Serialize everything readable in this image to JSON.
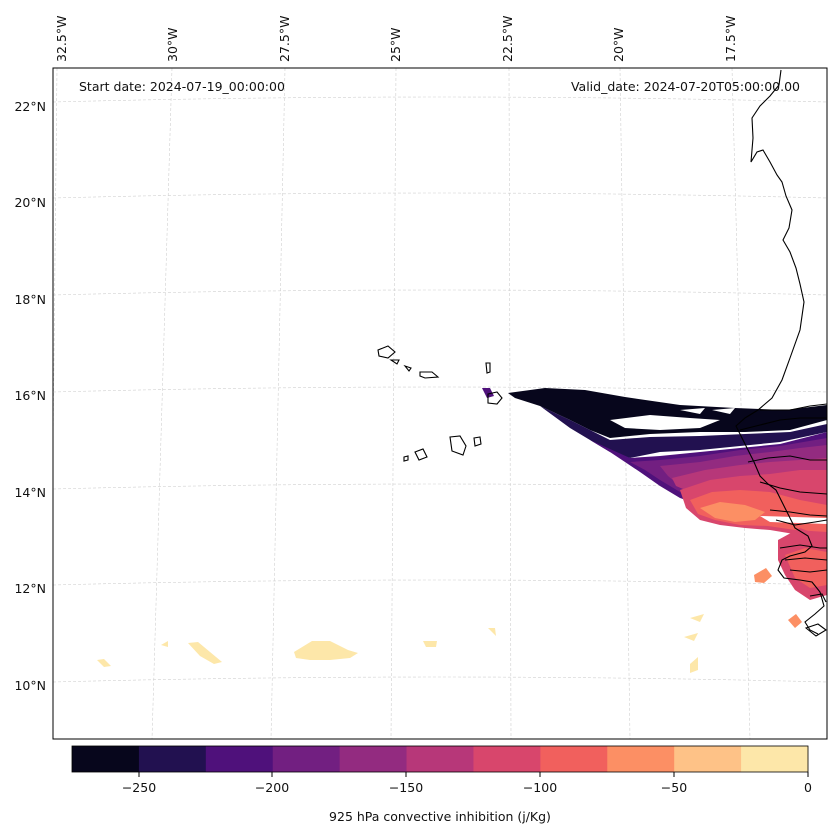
{
  "header": {
    "start_date": "Start date: 2024-07-19_00:00:00",
    "valid_date": "Valid_date: 2024-07-20T05:00:00.00"
  },
  "axes": {
    "lon_labels": [
      "32.5°W",
      "30°W",
      "27.5°W",
      "25°W",
      "22.5°W",
      "20°W",
      "17.5°W"
    ],
    "lat_labels": [
      "22°N",
      "20°N",
      "18°N",
      "16°N",
      "14°N",
      "12°N",
      "10°N"
    ]
  },
  "colorbar": {
    "label": "925 hPa convective inhibition (j/Kg)",
    "tick_labels": [
      "−250",
      "−200",
      "−150",
      "−100",
      "−50",
      "0"
    ],
    "levels": [
      -275,
      -250,
      -225,
      -200,
      -175,
      -150,
      -125,
      -100,
      -75,
      -50,
      -25,
      0
    ],
    "colors": [
      "#07061c",
      "#221150",
      "#4f117b",
      "#721f81",
      "#932b80",
      "#b73779",
      "#d8466c",
      "#f1605d",
      "#fc8f64",
      "#fec287",
      "#fde7a9"
    ]
  },
  "chart_data": {
    "type": "heatmap",
    "title": "",
    "region": {
      "lon_range": [
        -33,
        -15.5
      ],
      "lat_range": [
        9,
        22.8
      ]
    },
    "variable": "925 hPa convective inhibition",
    "units": "j/Kg",
    "colorbar_range": [
      -275,
      0
    ]
  }
}
